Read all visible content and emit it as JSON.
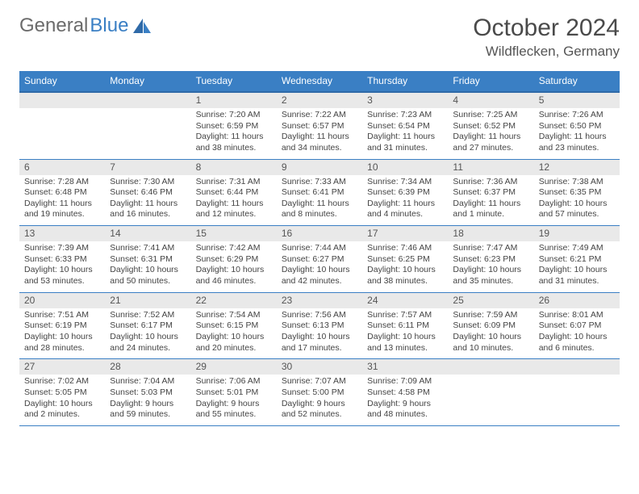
{
  "logo": {
    "part1": "General",
    "part2": "Blue"
  },
  "title": "October 2024",
  "location": "Wildflecken, Germany",
  "colors": {
    "header_bg": "#3a7fc4",
    "header_border": "#2f6aa8",
    "daynum_bg": "#e9e9e9",
    "text": "#444444",
    "logo_blue": "#3a7fc4"
  },
  "fonts": {
    "title_size_pt": 22,
    "location_size_pt": 13,
    "dayhead_size_pt": 9,
    "daynum_size_pt": 9,
    "info_size_pt": 8
  },
  "day_names": [
    "Sunday",
    "Monday",
    "Tuesday",
    "Wednesday",
    "Thursday",
    "Friday",
    "Saturday"
  ],
  "weeks": [
    [
      null,
      null,
      {
        "n": "1",
        "sr": "Sunrise: 7:20 AM",
        "ss": "Sunset: 6:59 PM",
        "dl1": "Daylight: 11 hours",
        "dl2": "and 38 minutes."
      },
      {
        "n": "2",
        "sr": "Sunrise: 7:22 AM",
        "ss": "Sunset: 6:57 PM",
        "dl1": "Daylight: 11 hours",
        "dl2": "and 34 minutes."
      },
      {
        "n": "3",
        "sr": "Sunrise: 7:23 AM",
        "ss": "Sunset: 6:54 PM",
        "dl1": "Daylight: 11 hours",
        "dl2": "and 31 minutes."
      },
      {
        "n": "4",
        "sr": "Sunrise: 7:25 AM",
        "ss": "Sunset: 6:52 PM",
        "dl1": "Daylight: 11 hours",
        "dl2": "and 27 minutes."
      },
      {
        "n": "5",
        "sr": "Sunrise: 7:26 AM",
        "ss": "Sunset: 6:50 PM",
        "dl1": "Daylight: 11 hours",
        "dl2": "and 23 minutes."
      }
    ],
    [
      {
        "n": "6",
        "sr": "Sunrise: 7:28 AM",
        "ss": "Sunset: 6:48 PM",
        "dl1": "Daylight: 11 hours",
        "dl2": "and 19 minutes."
      },
      {
        "n": "7",
        "sr": "Sunrise: 7:30 AM",
        "ss": "Sunset: 6:46 PM",
        "dl1": "Daylight: 11 hours",
        "dl2": "and 16 minutes."
      },
      {
        "n": "8",
        "sr": "Sunrise: 7:31 AM",
        "ss": "Sunset: 6:44 PM",
        "dl1": "Daylight: 11 hours",
        "dl2": "and 12 minutes."
      },
      {
        "n": "9",
        "sr": "Sunrise: 7:33 AM",
        "ss": "Sunset: 6:41 PM",
        "dl1": "Daylight: 11 hours",
        "dl2": "and 8 minutes."
      },
      {
        "n": "10",
        "sr": "Sunrise: 7:34 AM",
        "ss": "Sunset: 6:39 PM",
        "dl1": "Daylight: 11 hours",
        "dl2": "and 4 minutes."
      },
      {
        "n": "11",
        "sr": "Sunrise: 7:36 AM",
        "ss": "Sunset: 6:37 PM",
        "dl1": "Daylight: 11 hours",
        "dl2": "and 1 minute."
      },
      {
        "n": "12",
        "sr": "Sunrise: 7:38 AM",
        "ss": "Sunset: 6:35 PM",
        "dl1": "Daylight: 10 hours",
        "dl2": "and 57 minutes."
      }
    ],
    [
      {
        "n": "13",
        "sr": "Sunrise: 7:39 AM",
        "ss": "Sunset: 6:33 PM",
        "dl1": "Daylight: 10 hours",
        "dl2": "and 53 minutes."
      },
      {
        "n": "14",
        "sr": "Sunrise: 7:41 AM",
        "ss": "Sunset: 6:31 PM",
        "dl1": "Daylight: 10 hours",
        "dl2": "and 50 minutes."
      },
      {
        "n": "15",
        "sr": "Sunrise: 7:42 AM",
        "ss": "Sunset: 6:29 PM",
        "dl1": "Daylight: 10 hours",
        "dl2": "and 46 minutes."
      },
      {
        "n": "16",
        "sr": "Sunrise: 7:44 AM",
        "ss": "Sunset: 6:27 PM",
        "dl1": "Daylight: 10 hours",
        "dl2": "and 42 minutes."
      },
      {
        "n": "17",
        "sr": "Sunrise: 7:46 AM",
        "ss": "Sunset: 6:25 PM",
        "dl1": "Daylight: 10 hours",
        "dl2": "and 38 minutes."
      },
      {
        "n": "18",
        "sr": "Sunrise: 7:47 AM",
        "ss": "Sunset: 6:23 PM",
        "dl1": "Daylight: 10 hours",
        "dl2": "and 35 minutes."
      },
      {
        "n": "19",
        "sr": "Sunrise: 7:49 AM",
        "ss": "Sunset: 6:21 PM",
        "dl1": "Daylight: 10 hours",
        "dl2": "and 31 minutes."
      }
    ],
    [
      {
        "n": "20",
        "sr": "Sunrise: 7:51 AM",
        "ss": "Sunset: 6:19 PM",
        "dl1": "Daylight: 10 hours",
        "dl2": "and 28 minutes."
      },
      {
        "n": "21",
        "sr": "Sunrise: 7:52 AM",
        "ss": "Sunset: 6:17 PM",
        "dl1": "Daylight: 10 hours",
        "dl2": "and 24 minutes."
      },
      {
        "n": "22",
        "sr": "Sunrise: 7:54 AM",
        "ss": "Sunset: 6:15 PM",
        "dl1": "Daylight: 10 hours",
        "dl2": "and 20 minutes."
      },
      {
        "n": "23",
        "sr": "Sunrise: 7:56 AM",
        "ss": "Sunset: 6:13 PM",
        "dl1": "Daylight: 10 hours",
        "dl2": "and 17 minutes."
      },
      {
        "n": "24",
        "sr": "Sunrise: 7:57 AM",
        "ss": "Sunset: 6:11 PM",
        "dl1": "Daylight: 10 hours",
        "dl2": "and 13 minutes."
      },
      {
        "n": "25",
        "sr": "Sunrise: 7:59 AM",
        "ss": "Sunset: 6:09 PM",
        "dl1": "Daylight: 10 hours",
        "dl2": "and 10 minutes."
      },
      {
        "n": "26",
        "sr": "Sunrise: 8:01 AM",
        "ss": "Sunset: 6:07 PM",
        "dl1": "Daylight: 10 hours",
        "dl2": "and 6 minutes."
      }
    ],
    [
      {
        "n": "27",
        "sr": "Sunrise: 7:02 AM",
        "ss": "Sunset: 5:05 PM",
        "dl1": "Daylight: 10 hours",
        "dl2": "and 2 minutes."
      },
      {
        "n": "28",
        "sr": "Sunrise: 7:04 AM",
        "ss": "Sunset: 5:03 PM",
        "dl1": "Daylight: 9 hours",
        "dl2": "and 59 minutes."
      },
      {
        "n": "29",
        "sr": "Sunrise: 7:06 AM",
        "ss": "Sunset: 5:01 PM",
        "dl1": "Daylight: 9 hours",
        "dl2": "and 55 minutes."
      },
      {
        "n": "30",
        "sr": "Sunrise: 7:07 AM",
        "ss": "Sunset: 5:00 PM",
        "dl1": "Daylight: 9 hours",
        "dl2": "and 52 minutes."
      },
      {
        "n": "31",
        "sr": "Sunrise: 7:09 AM",
        "ss": "Sunset: 4:58 PM",
        "dl1": "Daylight: 9 hours",
        "dl2": "and 48 minutes."
      },
      null,
      null
    ]
  ]
}
